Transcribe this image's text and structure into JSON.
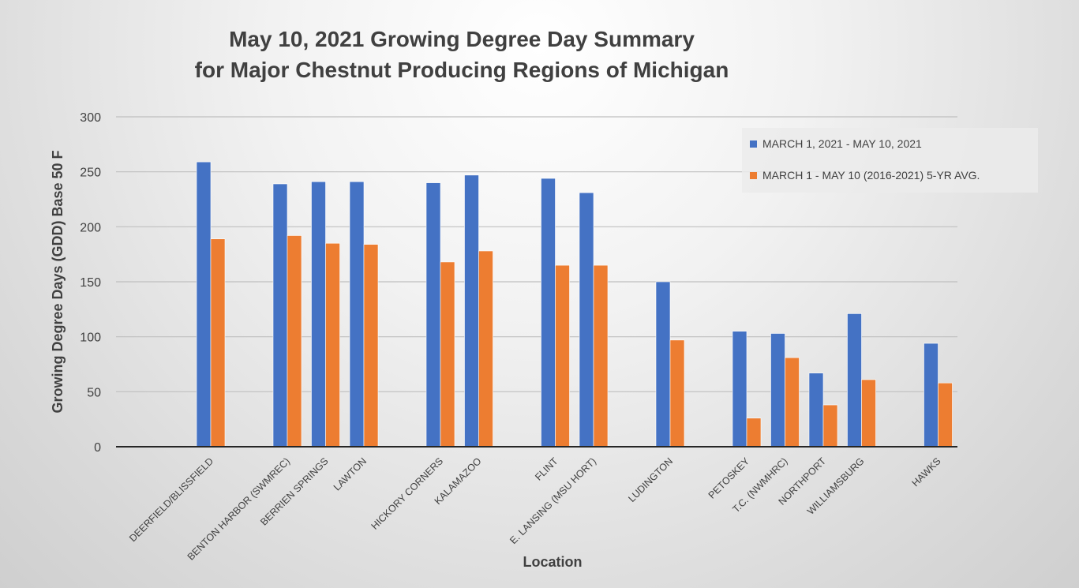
{
  "chart_data": {
    "type": "bar",
    "title_lines": [
      "May 10, 2021 Growing Degree Day Summary",
      "for Major Chestnut Producing Regions of Michigan"
    ],
    "xlabel": "Location",
    "ylabel": "Growing Degree Days (GDD) Base 50 F",
    "ylim": [
      0,
      300
    ],
    "yticks": [
      0,
      50,
      100,
      150,
      200,
      250,
      300
    ],
    "grid": true,
    "legend_position": "top-right",
    "categories": [
      "DEERFIELD/BLISSFIELD",
      "BENTON HARBOR (SWMREC)",
      "BERRIEN SPRINGS",
      "LAWTON",
      "HICKORY CORNERS",
      "KALAMAZOO",
      "FLINT",
      "E. LANSING (MSU HORT)",
      "LUDINGTON",
      "PETOSKEY",
      "T.C. (NWMHRC)",
      "NORTHPORT",
      "WILLIAMSBURG",
      "HAWKS"
    ],
    "series": [
      {
        "name": "MARCH 1, 2021 - MAY 10, 2021",
        "color": "#4472C4",
        "values": [
          259,
          239,
          241,
          241,
          240,
          247,
          244,
          231,
          150,
          105,
          103,
          67,
          121,
          94
        ]
      },
      {
        "name": "MARCH 1 - MAY 10 (2016-2021) 5-YR AVG.",
        "color": "#ED7D31",
        "values": [
          189,
          192,
          185,
          184,
          168,
          178,
          165,
          165,
          97,
          26,
          81,
          38,
          61,
          58
        ]
      }
    ]
  }
}
